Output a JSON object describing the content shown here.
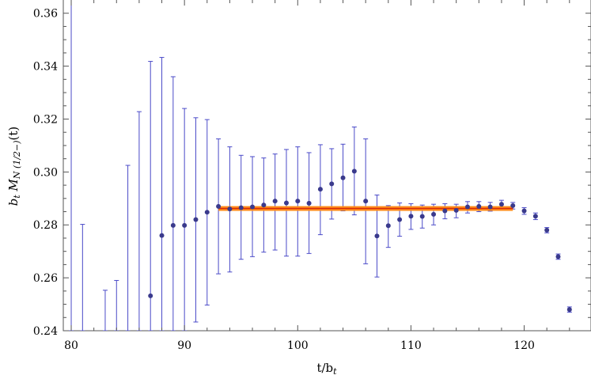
{
  "chart_data": {
    "type": "scatter",
    "xlabel": "t/b_t",
    "ylabel": "b_t M_N(1/2-)(t)",
    "xlim": [
      79.3,
      125.9
    ],
    "ylim": [
      0.24,
      0.365
    ],
    "x_ticks": [
      80,
      90,
      100,
      110,
      120
    ],
    "y_ticks": [
      0.24,
      0.26,
      0.28,
      0.3,
      0.32,
      0.34,
      0.36
    ],
    "tick_labels_x": [
      "80",
      "90",
      "100",
      "110",
      "120"
    ],
    "tick_labels_y": [
      "0.24",
      "0.26",
      "0.28",
      "0.30",
      "0.32",
      "0.34",
      "0.36"
    ],
    "grid": false,
    "colors": {
      "points": "#3a3a8c",
      "errorbars": "#4a4ac8",
      "fit_band": "#ff8c1a",
      "fit_line": "#d62a0a",
      "frame": "#555555"
    },
    "fit": {
      "x_range": [
        93,
        119
      ],
      "value": 0.2862,
      "band": [
        0.2853,
        0.2871
      ]
    },
    "points": [
      {
        "x": 80,
        "y": null,
        "err_low": 0.24,
        "err_high": 0.37
      },
      {
        "x": 81,
        "y": null,
        "err_low": 0.24,
        "err_high": 0.2802
      },
      {
        "x": 83,
        "y": null,
        "err_low": 0.24,
        "err_high": 0.2553
      },
      {
        "x": 84,
        "y": null,
        "err_low": 0.24,
        "err_high": 0.259
      },
      {
        "x": 85,
        "y": null,
        "err_low": 0.24,
        "err_high": 0.3025
      },
      {
        "x": 86,
        "y": null,
        "err_low": 0.24,
        "err_high": 0.3228
      },
      {
        "x": 87,
        "y": 0.2532,
        "err_low": 0.24,
        "err_high": 0.3418
      },
      {
        "x": 88,
        "y": 0.276,
        "err_low": 0.24,
        "err_high": 0.3433
      },
      {
        "x": 89,
        "y": 0.2798,
        "err_low": 0.24,
        "err_high": 0.336
      },
      {
        "x": 90,
        "y": 0.2798,
        "err_low": 0.24,
        "err_high": 0.324
      },
      {
        "x": 91,
        "y": 0.282,
        "err_low": 0.2433,
        "err_high": 0.3205
      },
      {
        "x": 92,
        "y": 0.2848,
        "err_low": 0.2497,
        "err_high": 0.3198
      },
      {
        "x": 93,
        "y": 0.287,
        "err_low": 0.2615,
        "err_high": 0.3125
      },
      {
        "x": 94,
        "y": 0.286,
        "err_low": 0.2622,
        "err_high": 0.3095
      },
      {
        "x": 95,
        "y": 0.2865,
        "err_low": 0.267,
        "err_high": 0.3063
      },
      {
        "x": 96,
        "y": 0.2868,
        "err_low": 0.268,
        "err_high": 0.3058
      },
      {
        "x": 97,
        "y": 0.2875,
        "err_low": 0.2697,
        "err_high": 0.3053
      },
      {
        "x": 98,
        "y": 0.289,
        "err_low": 0.2705,
        "err_high": 0.3068
      },
      {
        "x": 99,
        "y": 0.2883,
        "err_low": 0.2682,
        "err_high": 0.3085
      },
      {
        "x": 100,
        "y": 0.289,
        "err_low": 0.2682,
        "err_high": 0.3095
      },
      {
        "x": 101,
        "y": 0.2882,
        "err_low": 0.2692,
        "err_high": 0.3073
      },
      {
        "x": 102,
        "y": 0.2935,
        "err_low": 0.2763,
        "err_high": 0.3103
      },
      {
        "x": 103,
        "y": 0.2955,
        "err_low": 0.2822,
        "err_high": 0.3088
      },
      {
        "x": 104,
        "y": 0.2978,
        "err_low": 0.2853,
        "err_high": 0.3105
      },
      {
        "x": 105,
        "y": 0.3003,
        "err_low": 0.2838,
        "err_high": 0.317
      },
      {
        "x": 106,
        "y": 0.289,
        "err_low": 0.2653,
        "err_high": 0.3125
      },
      {
        "x": 107,
        "y": 0.2758,
        "err_low": 0.2603,
        "err_high": 0.2913
      },
      {
        "x": 108,
        "y": 0.2797,
        "err_low": 0.2715,
        "err_high": 0.2873
      },
      {
        "x": 109,
        "y": 0.282,
        "err_low": 0.2757,
        "err_high": 0.2883
      },
      {
        "x": 110,
        "y": 0.2833,
        "err_low": 0.2783,
        "err_high": 0.288
      },
      {
        "x": 111,
        "y": 0.2832,
        "err_low": 0.2788,
        "err_high": 0.2875
      },
      {
        "x": 112,
        "y": 0.284,
        "err_low": 0.28,
        "err_high": 0.2878
      },
      {
        "x": 113,
        "y": 0.2853,
        "err_low": 0.2823,
        "err_high": 0.288
      },
      {
        "x": 114,
        "y": 0.2855,
        "err_low": 0.2827,
        "err_high": 0.2878
      },
      {
        "x": 115,
        "y": 0.2868,
        "err_low": 0.2845,
        "err_high": 0.2888
      },
      {
        "x": 116,
        "y": 0.287,
        "err_low": 0.285,
        "err_high": 0.2888
      },
      {
        "x": 117,
        "y": 0.2868,
        "err_low": 0.2852,
        "err_high": 0.2885
      },
      {
        "x": 118,
        "y": 0.2878,
        "err_low": 0.2862,
        "err_high": 0.2893
      },
      {
        "x": 119,
        "y": 0.2873,
        "err_low": 0.286,
        "err_high": 0.2885
      },
      {
        "x": 120,
        "y": 0.2853,
        "err_low": 0.284,
        "err_high": 0.2865
      },
      {
        "x": 121,
        "y": 0.2833,
        "err_low": 0.282,
        "err_high": 0.2845
      },
      {
        "x": 122,
        "y": 0.278,
        "err_low": 0.277,
        "err_high": 0.279
      },
      {
        "x": 123,
        "y": 0.268,
        "err_low": 0.267,
        "err_high": 0.269
      },
      {
        "x": 124,
        "y": 0.248,
        "err_low": 0.247,
        "err_high": 0.249
      }
    ]
  }
}
